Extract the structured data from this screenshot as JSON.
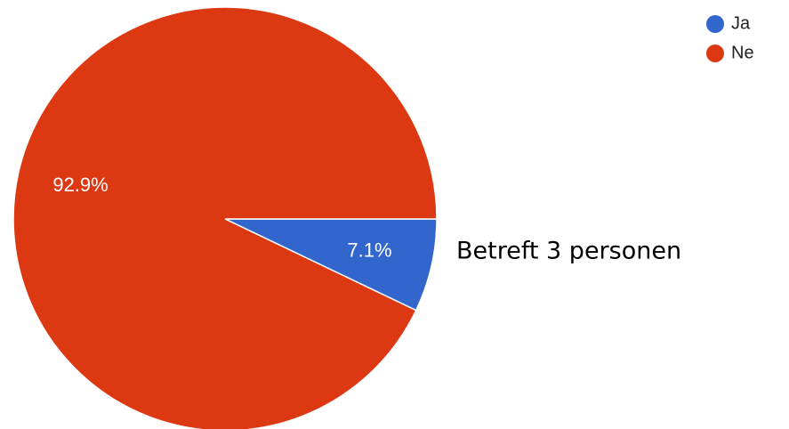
{
  "chart_data": {
    "type": "pie",
    "categories": [
      "Ja",
      "Ne"
    ],
    "values": [
      7.1,
      92.9
    ],
    "value_labels": [
      "7.1%",
      "92.9%"
    ],
    "colors": [
      "#3366cc",
      "#dc3912"
    ],
    "annotation": "Betreft 3 personen"
  }
}
